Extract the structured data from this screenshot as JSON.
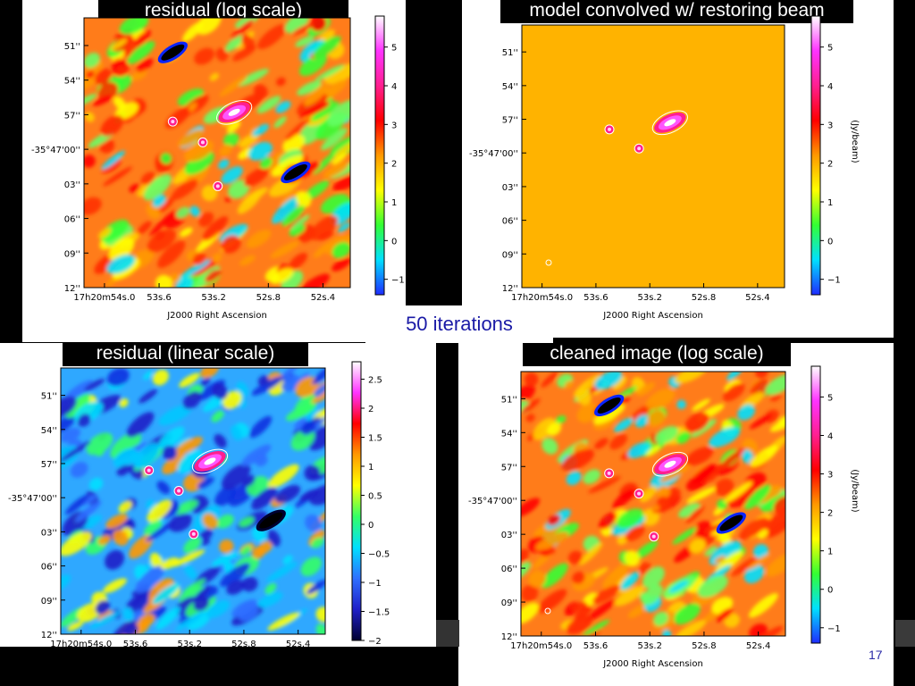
{
  "slide": {
    "banner": "50 iterations",
    "slide_number": "17"
  },
  "chart_data": [
    {
      "id": "p1",
      "type": "heatmap",
      "title": "residual  (log scale)",
      "xlabel": "J2000 Right Ascension",
      "ylabel": "",
      "colorbar_label": "",
      "xticks": [
        "17h20m54s.0",
        "53s.6",
        "53s.2",
        "52s.8",
        "52s.4"
      ],
      "yticks": [
        "51''",
        "54''",
        "57''",
        "-35°47'00''",
        "03''",
        "06''",
        "09''",
        "12''"
      ],
      "colorbar_ticks": [
        "5",
        "4",
        "3",
        "2",
        "1",
        "0",
        "−1"
      ],
      "colorbar_range": [
        -1.4,
        5.8
      ],
      "scale": "log",
      "colormap": [
        "#1f2cff",
        "#00e0ff",
        "#33ff33",
        "#ffff00",
        "#ff9900",
        "#ff0000",
        "#ff1f8f",
        "#ff33ff",
        "#ffffff"
      ],
      "dominant_color": "#ff7c1a",
      "sources": [
        {
          "name": "bright source",
          "x": 53.05,
          "y": 56.8,
          "peak": 5.8
        },
        {
          "name": "compact source A",
          "x": 53.5,
          "y": 57.6,
          "peak": 3.2
        },
        {
          "name": "compact source B",
          "x": 53.28,
          "y": 59.4,
          "peak": 2.8
        },
        {
          "name": "compact source C",
          "x": 53.17,
          "y": 63.2,
          "peak": 2.4
        }
      ],
      "negative_lobes": [
        {
          "x": 53.5,
          "y": 51.6
        },
        {
          "x": 52.6,
          "y": 62.0
        }
      ]
    },
    {
      "id": "p2",
      "type": "heatmap",
      "title": "model convolved w/ restoring beam",
      "xlabel": "J2000 Right Ascension",
      "ylabel": "",
      "colorbar_label": "(Jy/beam)",
      "xticks": [
        "17h20m54s.0",
        "53s.6",
        "53s.2",
        "52s.8",
        "52s.4"
      ],
      "yticks": [
        "51''",
        "54''",
        "57''",
        "-35°47'00''",
        "03''",
        "06''",
        "09''",
        "12''"
      ],
      "colorbar_ticks": [
        "5",
        "4",
        "3",
        "2",
        "1",
        "0",
        "−1"
      ],
      "colorbar_range": [
        -1.4,
        5.8
      ],
      "scale": "log",
      "colormap": [
        "#1f2cff",
        "#00e0ff",
        "#33ff33",
        "#ffff00",
        "#ff9900",
        "#ff0000",
        "#ff1f8f",
        "#ff33ff",
        "#ffffff"
      ],
      "dominant_color": "#ffb300",
      "sources": [
        {
          "name": "bright source",
          "x": 53.05,
          "y": 57.3,
          "peak": 3.6
        },
        {
          "name": "compact source A",
          "x": 53.5,
          "y": 57.9,
          "peak": 3.0
        },
        {
          "name": "compact source B",
          "x": 53.28,
          "y": 59.6,
          "peak": 2.8
        }
      ],
      "negative_lobes": []
    },
    {
      "id": "p3",
      "type": "heatmap",
      "title": "residual  (linear scale)",
      "xlabel": "J2000 Right Ascension",
      "ylabel": "",
      "colorbar_label": "",
      "xticks": [
        "17h20m54s.0",
        "53s.6",
        "53s.2",
        "52s.8",
        "52s.4"
      ],
      "yticks": [
        "51''",
        "54''",
        "57''",
        "-35°47'00''",
        "03''",
        "06''",
        "09''",
        "12''"
      ],
      "colorbar_ticks": [
        "2.5",
        "2",
        "1.5",
        "1",
        "0.5",
        "0",
        "−0.5",
        "−1",
        "−1.5",
        "−2"
      ],
      "colorbar_range": [
        -2.0,
        2.8
      ],
      "scale": "linear",
      "colormap": [
        "#000030",
        "#1f1fc8",
        "#2f6fff",
        "#00e0ff",
        "#33ff66",
        "#ffff00",
        "#ff9900",
        "#ff0000",
        "#ff33ff",
        "#ffffff"
      ],
      "dominant_color": "#2fa8ff",
      "sources": [
        {
          "name": "bright source",
          "x": 53.05,
          "y": 56.8,
          "peak": 2.8
        },
        {
          "name": "compact source A",
          "x": 53.5,
          "y": 57.6,
          "peak": 0.8
        },
        {
          "name": "compact source B",
          "x": 53.28,
          "y": 59.4,
          "peak": 1.2
        },
        {
          "name": "compact source C",
          "x": 53.17,
          "y": 63.2,
          "peak": 1.6
        }
      ],
      "negative_lobes": [
        {
          "x": 52.6,
          "y": 62.0
        }
      ]
    },
    {
      "id": "p4",
      "type": "heatmap",
      "title": "cleaned image   (log scale)",
      "xlabel": "J2000 Right Ascension",
      "ylabel": "",
      "colorbar_label": "(Jy/beam)",
      "xticks": [
        "17h20m54s.0",
        "53s.6",
        "53s.2",
        "52s.8",
        "52s.4"
      ],
      "yticks": [
        "51''",
        "54''",
        "57''",
        "-35°47'00''",
        "03''",
        "06''",
        "09''",
        "12''"
      ],
      "colorbar_ticks": [
        "5",
        "4",
        "3",
        "2",
        "1",
        "0",
        "−1"
      ],
      "colorbar_range": [
        -1.4,
        5.8
      ],
      "scale": "log",
      "colormap": [
        "#1f2cff",
        "#00e0ff",
        "#33ff33",
        "#ffff00",
        "#ff9900",
        "#ff0000",
        "#ff1f8f",
        "#ff33ff",
        "#ffffff"
      ],
      "dominant_color": "#ff7c1a",
      "sources": [
        {
          "name": "bright source",
          "x": 53.05,
          "y": 56.8,
          "peak": 5.8
        },
        {
          "name": "compact source A",
          "x": 53.5,
          "y": 57.6,
          "peak": 3.4
        },
        {
          "name": "compact source B",
          "x": 53.28,
          "y": 59.4,
          "peak": 3.2
        },
        {
          "name": "compact source C",
          "x": 53.17,
          "y": 63.2,
          "peak": 2.6
        }
      ],
      "negative_lobes": [
        {
          "x": 53.5,
          "y": 51.6
        },
        {
          "x": 52.6,
          "y": 62.0
        }
      ]
    }
  ]
}
